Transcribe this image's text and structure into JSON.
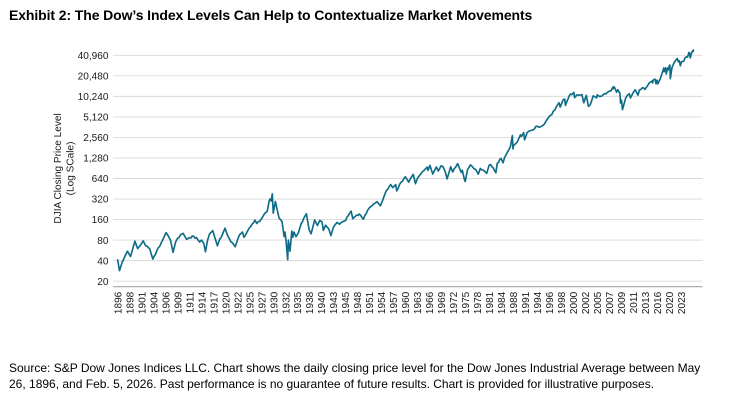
{
  "page": {
    "title": "Exhibit 2: The Dow’s Index Levels Can Help to Contextualize Market Movements",
    "source_lines": [
      "Source: S&P Dow Jones Indices LLC. Chart shows the daily closing price level for the Dow Jones Industrial Average between May",
      "26, 1896, and Feb. 5, 2026. Past performance is no guarantee of future results. Chart is provided for illustrative purposes."
    ]
  },
  "chart_data": {
    "type": "line",
    "title": "Exhibit 2: The Dow’s Index Levels Can Help to Contextualize Market Movements",
    "ylabel_line1": "DJIA Closing Price Level",
    "ylabel_line2": "(Log SCale)",
    "yscale": "log2",
    "ylim": [
      17,
      58000
    ],
    "grid": true,
    "legend": "none",
    "line_color": "#0e6c87",
    "grid_color": "#d9d9d9",
    "axis_color": "#a6a6a6",
    "text_color": "#1a1a1a",
    "y_ticks": [
      {
        "label": "40,960",
        "value": 40960
      },
      {
        "label": "20,480",
        "value": 20480
      },
      {
        "label": "10,240",
        "value": 10240
      },
      {
        "label": "5,120",
        "value": 5120
      },
      {
        "label": "2,560",
        "value": 2560
      },
      {
        "label": "1,280",
        "value": 1280
      },
      {
        "label": "640",
        "value": 640
      },
      {
        "label": "320",
        "value": 320
      },
      {
        "label": "160",
        "value": 160
      },
      {
        "label": "80",
        "value": 80
      },
      {
        "label": "40",
        "value": 40
      },
      {
        "label": "20",
        "value": 20
      }
    ],
    "x_tick_labels": [
      "1896",
      "1898",
      "1901",
      "1904",
      "1906",
      "1909",
      "1911",
      "1914",
      "1917",
      "1920",
      "1922",
      "1925",
      "1927",
      "1930",
      "1932",
      "1935",
      "1938",
      "1940",
      "1943",
      "1945",
      "1948",
      "1951",
      "1954",
      "1957",
      "1960",
      "1963",
      "1966",
      "1969",
      "1972",
      "1975",
      "1978",
      "1981",
      "1984",
      "1988",
      "1991",
      "1994",
      "1996",
      "1998",
      "2000",
      "2002",
      "2005",
      "2007",
      "2009",
      "2011",
      "2013",
      "2016",
      "2020",
      "2023"
    ],
    "x_range_years": [
      1896.4,
      2026.1
    ],
    "series": [
      {
        "name": "Dow Jones Industrial Average",
        "points": [
          [
            1896.4,
            40.9
          ],
          [
            1896.65,
            28.5
          ],
          [
            1897.0,
            38
          ],
          [
            1897.7,
            55
          ],
          [
            1898.2,
            46
          ],
          [
            1899.0,
            66
          ],
          [
            1899.3,
            77
          ],
          [
            1900.0,
            60
          ],
          [
            1900.9,
            70
          ],
          [
            1901.4,
            78
          ],
          [
            1902.0,
            66
          ],
          [
            1903.0,
            60
          ],
          [
            1903.8,
            42.2
          ],
          [
            1904.5,
            55
          ],
          [
            1905.5,
            80
          ],
          [
            1906.1,
            103
          ],
          [
            1906.6,
            93
          ],
          [
            1907.2,
            80
          ],
          [
            1907.85,
            53
          ],
          [
            1908.5,
            75
          ],
          [
            1909.0,
            85
          ],
          [
            1909.9,
            100.5
          ],
          [
            1910.5,
            82
          ],
          [
            1911.0,
            87
          ],
          [
            1912.0,
            91
          ],
          [
            1913.0,
            82
          ],
          [
            1913.5,
            75
          ],
          [
            1914.0,
            80
          ],
          [
            1914.55,
            71
          ],
          [
            1914.96,
            54
          ],
          [
            1915.5,
            80
          ],
          [
            1915.99,
            99
          ],
          [
            1916.8,
            110
          ],
          [
            1917.1,
            95
          ],
          [
            1917.95,
            66
          ],
          [
            1918.5,
            82
          ],
          [
            1918.9,
            88
          ],
          [
            1919.3,
            100
          ],
          [
            1919.85,
            119.6
          ],
          [
            1920.3,
            95
          ],
          [
            1920.9,
            75
          ],
          [
            1921.6,
            63.9
          ],
          [
            1922.5,
            96
          ],
          [
            1923.2,
            105
          ],
          [
            1923.6,
            88
          ],
          [
            1924.0,
            96
          ],
          [
            1924.9,
            120
          ],
          [
            1925.9,
            157
          ],
          [
            1926.2,
            140
          ],
          [
            1926.9,
            161
          ],
          [
            1927.9,
            200
          ],
          [
            1928.4,
            210
          ],
          [
            1928.9,
            300
          ],
          [
            1929.1,
            320
          ],
          [
            1929.4,
            300
          ],
          [
            1929.67,
            381.2
          ],
          [
            1929.85,
            230
          ],
          [
            1929.9,
            198.7
          ],
          [
            1930.3,
            294
          ],
          [
            1930.9,
            170
          ],
          [
            1931.4,
            150
          ],
          [
            1931.75,
            90
          ],
          [
            1931.9,
            105
          ],
          [
            1932.1,
            80
          ],
          [
            1932.54,
            41.2
          ],
          [
            1932.7,
            79.9
          ],
          [
            1933.1,
            55
          ],
          [
            1933.55,
            108.7
          ],
          [
            1933.8,
            88
          ],
          [
            1934.1,
            105
          ],
          [
            1934.6,
            90
          ],
          [
            1935.2,
            102
          ],
          [
            1935.9,
            140
          ],
          [
            1936.9,
            182
          ],
          [
            1937.2,
            194.4
          ],
          [
            1937.9,
            113
          ],
          [
            1938.25,
            99
          ],
          [
            1938.85,
            158
          ],
          [
            1939.3,
            131
          ],
          [
            1939.7,
            155
          ],
          [
            1940.1,
            148
          ],
          [
            1940.45,
            111
          ],
          [
            1941.0,
            132
          ],
          [
            1941.95,
            110
          ],
          [
            1942.32,
            92.9
          ],
          [
            1943.0,
            125
          ],
          [
            1943.55,
            145
          ],
          [
            1944.0,
            137
          ],
          [
            1945.0,
            155
          ],
          [
            1945.95,
            195
          ],
          [
            1946.4,
            212.5
          ],
          [
            1946.8,
            165
          ],
          [
            1947.5,
            180
          ],
          [
            1948.45,
            193
          ],
          [
            1949.45,
            161.6
          ],
          [
            1950.5,
            218
          ],
          [
            1951.0,
            240
          ],
          [
            1951.75,
            260
          ],
          [
            1952.0,
            270
          ],
          [
            1952.9,
            292
          ],
          [
            1953.7,
            255
          ],
          [
            1954.9,
            386
          ],
          [
            1955.9,
            485
          ],
          [
            1956.28,
            521.1
          ],
          [
            1956.8,
            470
          ],
          [
            1957.55,
            520
          ],
          [
            1957.8,
            419.8
          ],
          [
            1958.9,
            565
          ],
          [
            1959.95,
            679
          ],
          [
            1960.8,
            566
          ],
          [
            1961.95,
            734.9
          ],
          [
            1962.5,
            535.8
          ],
          [
            1963.0,
            647
          ],
          [
            1963.9,
            760
          ],
          [
            1964.9,
            874
          ],
          [
            1965.4,
            940
          ],
          [
            1965.6,
            840
          ],
          [
            1966.1,
            995.2
          ],
          [
            1966.8,
            744.3
          ],
          [
            1967.7,
            943
          ],
          [
            1968.2,
            825
          ],
          [
            1968.92,
            985.2
          ],
          [
            1969.4,
            950
          ],
          [
            1969.95,
            800
          ],
          [
            1970.4,
            631.2
          ],
          [
            1971.3,
            950
          ],
          [
            1971.8,
            798
          ],
          [
            1972.95,
            1036
          ],
          [
            1973.05,
            1051.7
          ],
          [
            1973.6,
            870
          ],
          [
            1973.95,
            788
          ],
          [
            1974.2,
            846
          ],
          [
            1974.75,
            607
          ],
          [
            1974.95,
            577.6
          ],
          [
            1975.5,
            855
          ],
          [
            1976.2,
            1014.8
          ],
          [
            1976.7,
            960
          ],
          [
            1977.9,
            800
          ],
          [
            1978.2,
            742.1
          ],
          [
            1978.7,
            900
          ],
          [
            1979.8,
            815
          ],
          [
            1980.3,
            759
          ],
          [
            1980.9,
            1000
          ],
          [
            1981.3,
            1024
          ],
          [
            1982.6,
            776.9
          ],
          [
            1982.95,
            1070
          ],
          [
            1983.9,
            1260
          ],
          [
            1984.5,
            1086
          ],
          [
            1985.0,
            1287
          ],
          [
            1985.95,
            1547
          ],
          [
            1986.7,
            1770
          ],
          [
            1987.0,
            1900
          ],
          [
            1987.62,
            2722.4
          ],
          [
            1987.8,
            1738.7
          ],
          [
            1988.0,
            1950
          ],
          [
            1988.9,
            2170
          ],
          [
            1989.75,
            2791
          ],
          [
            1990.0,
            2650
          ],
          [
            1990.55,
            3000
          ],
          [
            1990.78,
            2365
          ],
          [
            1991.4,
            3000
          ],
          [
            1992.0,
            3200
          ],
          [
            1992.9,
            3300
          ],
          [
            1993.9,
            3750
          ],
          [
            1994.3,
            3600
          ],
          [
            1994.9,
            3830
          ],
          [
            1995.9,
            5100
          ],
          [
            1996.9,
            6450
          ],
          [
            1997.6,
            8259
          ],
          [
            1997.8,
            7161
          ],
          [
            1998.3,
            9200
          ],
          [
            1998.54,
            9337.9
          ],
          [
            1998.67,
            7539
          ],
          [
            1999.3,
            10500
          ],
          [
            1999.95,
            11400
          ],
          [
            2000.05,
            11722.98
          ],
          [
            2000.2,
            9800
          ],
          [
            2000.6,
            10800
          ],
          [
            2001.4,
            10900
          ],
          [
            2001.72,
            8235.8
          ],
          [
            2002.2,
            10600
          ],
          [
            2002.75,
            7286.3
          ],
          [
            2003.2,
            7700
          ],
          [
            2003.95,
            10400
          ],
          [
            2004.8,
            9750
          ],
          [
            2004.95,
            10800
          ],
          [
            2005.3,
            10250
          ],
          [
            2005.95,
            10800
          ],
          [
            2006.9,
            12100
          ],
          [
            2007.3,
            12400
          ],
          [
            2007.55,
            13900
          ],
          [
            2007.62,
            13250
          ],
          [
            2007.78,
            14164.5
          ],
          [
            2008.0,
            13000
          ],
          [
            2008.2,
            11740
          ],
          [
            2008.4,
            12800
          ],
          [
            2008.75,
            11400
          ],
          [
            2008.85,
            8175
          ],
          [
            2009.0,
            9000
          ],
          [
            2009.18,
            6547
          ],
          [
            2009.7,
            9600
          ],
          [
            2009.95,
            10500
          ],
          [
            2010.3,
            11200
          ],
          [
            2010.5,
            9686
          ],
          [
            2010.95,
            11600
          ],
          [
            2011.3,
            12800
          ],
          [
            2011.75,
            10655
          ],
          [
            2012.0,
            12700
          ],
          [
            2012.7,
            13600
          ],
          [
            2012.9,
            12900
          ],
          [
            2013.9,
            16000
          ],
          [
            2014.7,
            17280
          ],
          [
            2014.8,
            16117
          ],
          [
            2014.95,
            17800
          ],
          [
            2015.4,
            18312
          ],
          [
            2015.65,
            15666
          ],
          [
            2015.9,
            17700
          ],
          [
            2016.1,
            15660
          ],
          [
            2016.9,
            18300
          ],
          [
            2017.9,
            24700
          ],
          [
            2018.07,
            26616.7
          ],
          [
            2018.25,
            23533
          ],
          [
            2018.7,
            26828
          ],
          [
            2018.96,
            21792
          ],
          [
            2019.3,
            26500
          ],
          [
            2019.55,
            25000
          ],
          [
            2019.95,
            28500
          ],
          [
            2020.12,
            29551.4
          ],
          [
            2020.22,
            18591.9
          ],
          [
            2020.65,
            27000
          ],
          [
            2020.95,
            30000
          ],
          [
            2021.3,
            33000
          ],
          [
            2021.85,
            36338
          ],
          [
            2022.0,
            36799.7
          ],
          [
            2022.2,
            33000
          ],
          [
            2022.45,
            34000
          ],
          [
            2022.74,
            28725.5
          ],
          [
            2023.0,
            33000
          ],
          [
            2023.6,
            33500
          ],
          [
            2023.95,
            37690
          ],
          [
            2024.3,
            39000
          ],
          [
            2024.6,
            38600
          ],
          [
            2024.95,
            45014
          ],
          [
            2025.1,
            44500
          ],
          [
            2025.28,
            37600
          ],
          [
            2025.6,
            44000
          ],
          [
            2025.9,
            47500
          ],
          [
            2026.0,
            46500
          ],
          [
            2026.1,
            48800
          ]
        ]
      }
    ]
  }
}
